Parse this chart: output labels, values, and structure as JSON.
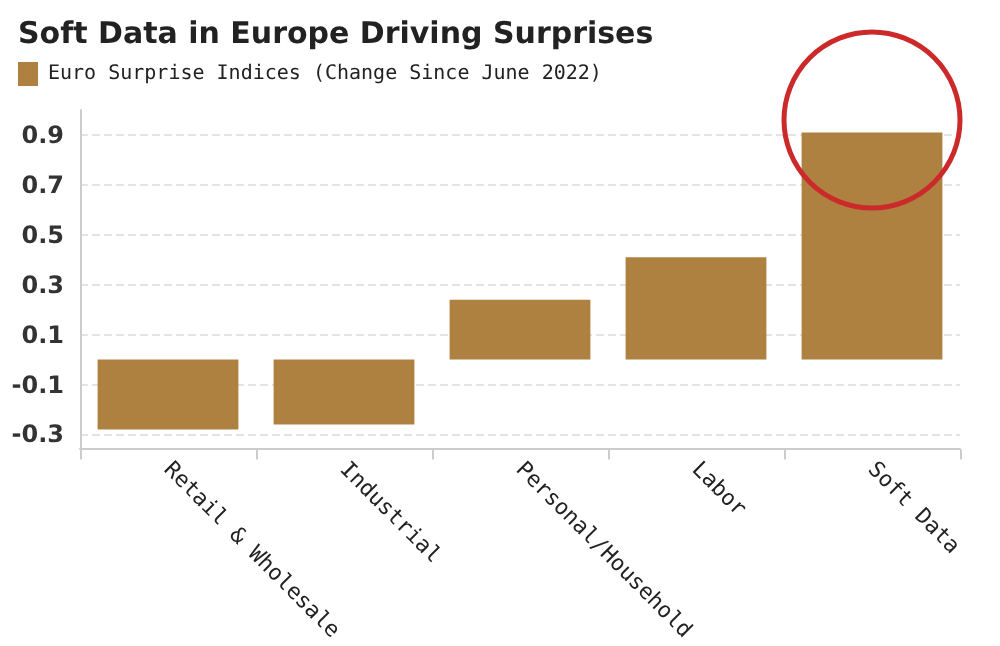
{
  "chart_data": {
    "type": "bar",
    "title": "Soft Data in Europe Driving Surprises",
    "categories": [
      "Retail & Wholesale",
      "Industrial",
      "Personal/Household",
      "Labor",
      "Soft Data"
    ],
    "series": [
      {
        "name": "Euro Surprise Indices (Change Since June 2022)",
        "color": "#ae8141",
        "values": [
          -0.28,
          -0.26,
          0.24,
          0.41,
          0.91
        ]
      }
    ],
    "ylim": [
      -0.36,
      1.0
    ],
    "yticks": [
      -0.3,
      -0.1,
      0.1,
      0.3,
      0.5,
      0.7,
      0.9
    ],
    "grid": "y",
    "legend": "top left"
  }
}
